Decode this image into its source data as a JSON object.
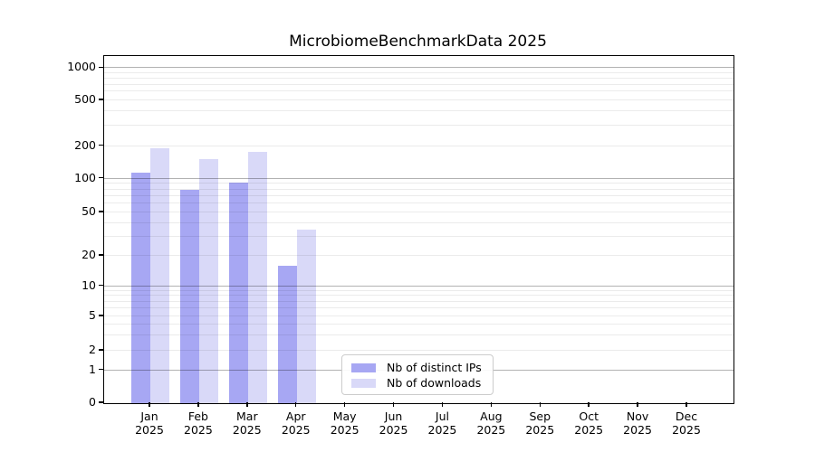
{
  "chart_data": {
    "type": "bar",
    "title": "MicrobiomeBenchmarkData 2025",
    "categories": [
      "Jan",
      "Feb",
      "Mar",
      "Apr",
      "May",
      "Jun",
      "Jul",
      "Aug",
      "Sep",
      "Oct",
      "Nov",
      "Dec"
    ],
    "x_tick_second_line": "2025",
    "series": [
      {
        "name": "Nb of distinct IPs",
        "color": "#a7a7f3",
        "values": [
          113,
          80,
          92,
          16,
          null,
          null,
          null,
          null,
          null,
          null,
          null,
          null
        ]
      },
      {
        "name": "Nb of downloads",
        "color": "#d9d9f8",
        "values": [
          190,
          152,
          176,
          35,
          null,
          null,
          null,
          null,
          null,
          null,
          null,
          null
        ]
      }
    ],
    "yscale": "symlog",
    "ylim": [
      0,
      1250
    ],
    "y_ticks": [
      0,
      1,
      2,
      5,
      10,
      20,
      50,
      100,
      200,
      500,
      1000
    ],
    "major_grid_values": [
      1,
      10,
      100,
      1000
    ],
    "grid": true,
    "legend_position": "inside-lower-center",
    "colors": {
      "grid_major": "rgba(0,0,0,0.30)",
      "grid_minor": "rgba(0,0,0,0.08)",
      "axis": "#000000",
      "background": "#ffffff"
    }
  }
}
